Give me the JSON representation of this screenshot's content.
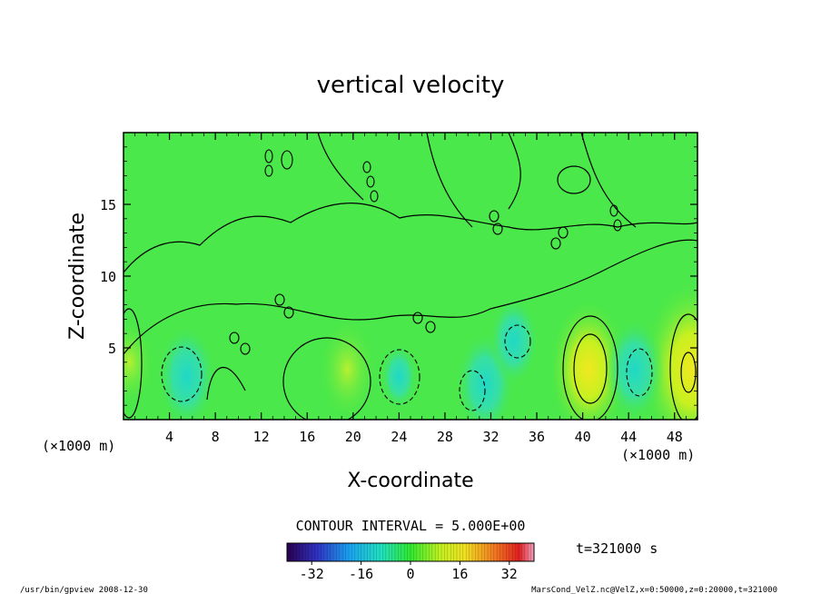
{
  "chart_data": {
    "type": "heatmap",
    "title": "vertical velocity",
    "xlabel": "X-coordinate",
    "ylabel": "Z-coordinate",
    "x_unit_left": "(×1000 m)",
    "x_unit_right": "(×1000 m)",
    "xlim": [
      0,
      50
    ],
    "ylim": [
      0,
      20
    ],
    "xticks": [
      "4",
      "8",
      "12",
      "16",
      "20",
      "24",
      "28",
      "32",
      "36",
      "40",
      "44",
      "48"
    ],
    "yticks": [
      "5",
      "10",
      "15"
    ],
    "contour_interval_label": "CONTOUR INTERVAL = 5.000E+00",
    "time_label": "t=321000 s",
    "colorbar": {
      "min": -40,
      "max": 40,
      "ticks": [
        "-32",
        "-16",
        "0",
        "16",
        "32"
      ]
    },
    "features": [
      {
        "x": 40.5,
        "z": 3.5,
        "value": 15,
        "kind": "updraft"
      },
      {
        "x": 49.5,
        "z": 3.5,
        "value": 20,
        "kind": "updraft"
      },
      {
        "x": 19.5,
        "z": 3.5,
        "value": 10,
        "kind": "updraft"
      },
      {
        "x": 0.5,
        "z": 4.0,
        "value": 8,
        "kind": "updraft"
      },
      {
        "x": 5.5,
        "z": 3.0,
        "value": -10,
        "kind": "downdraft"
      },
      {
        "x": 31.5,
        "z": 2.5,
        "value": -10,
        "kind": "downdraft"
      },
      {
        "x": 34.0,
        "z": 5.5,
        "value": -8,
        "kind": "downdraft"
      },
      {
        "x": 44.5,
        "z": 3.5,
        "value": -10,
        "kind": "downdraft"
      },
      {
        "x": 24.0,
        "z": 3.0,
        "value": -5,
        "kind": "downdraft"
      }
    ]
  },
  "footer": {
    "left": "/usr/bin/gpview  2008-12-30",
    "right": "MarsCond_VelZ.nc@VelZ,x=0:50000,z=0:20000,t=321000"
  }
}
